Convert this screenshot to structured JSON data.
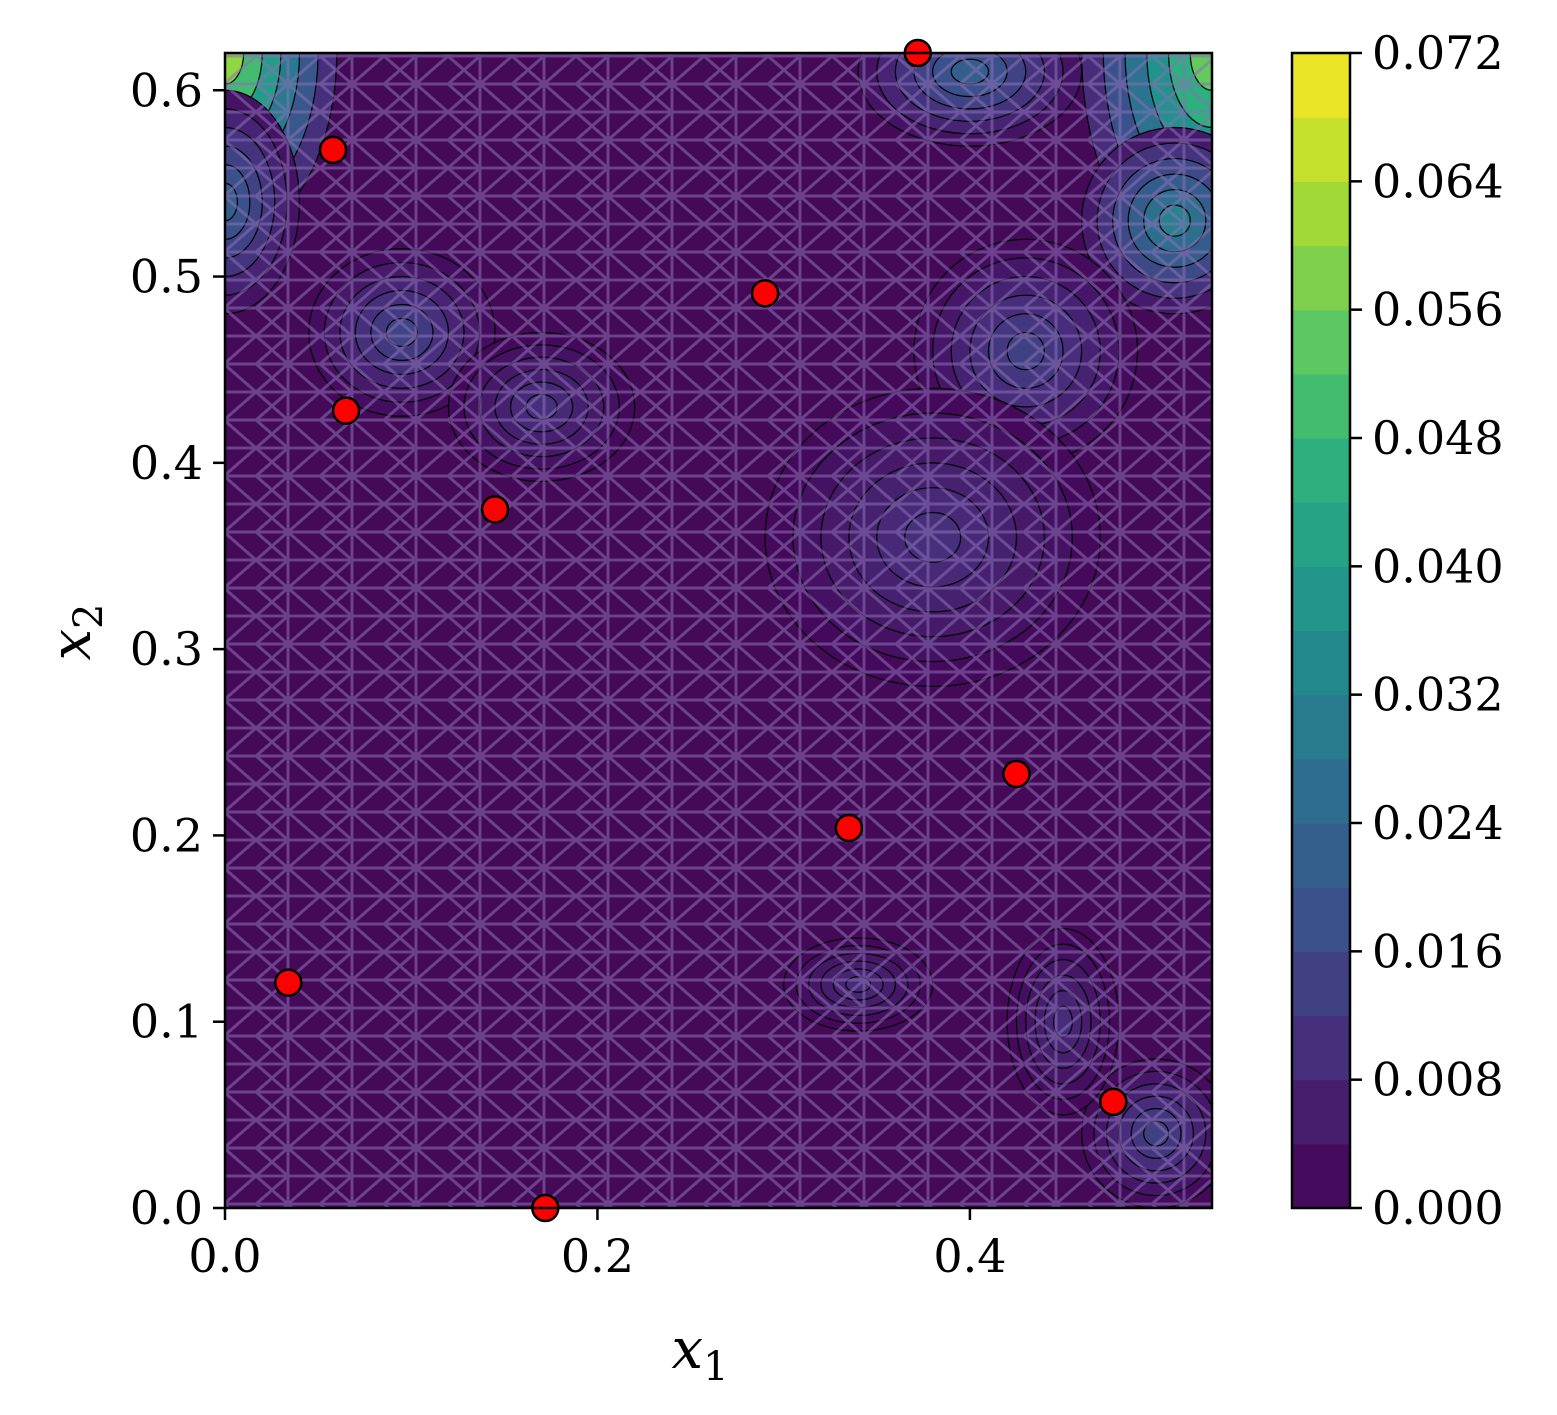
{
  "chart_data": {
    "type": "heatmap",
    "title": "",
    "xlabel": "x",
    "xlabel_sub": "1",
    "ylabel": "x",
    "ylabel_sub": "2",
    "xlim": [
      0.0,
      0.53
    ],
    "ylim": [
      0.0,
      0.62
    ],
    "x_ticks": [
      "0.0",
      "0.2",
      "0.4"
    ],
    "x_tick_values": [
      0.0,
      0.2,
      0.4
    ],
    "y_ticks": [
      "0.0",
      "0.1",
      "0.2",
      "0.3",
      "0.4",
      "0.5",
      "0.6"
    ],
    "y_tick_values": [
      0.0,
      0.1,
      0.2,
      0.3,
      0.4,
      0.5,
      0.6
    ],
    "colorbar": {
      "colormap": "viridis",
      "range": [
        0.0,
        0.072
      ],
      "tick_labels": [
        "0.000",
        "0.008",
        "0.016",
        "0.024",
        "0.032",
        "0.040",
        "0.048",
        "0.056",
        "0.064",
        "0.072"
      ],
      "tick_values": [
        0.0,
        0.008,
        0.016,
        0.024,
        0.032,
        0.04,
        0.048,
        0.056,
        0.064,
        0.072
      ],
      "levels": 18
    },
    "overlay": "triangular mesh",
    "points": {
      "color": "#ff0000",
      "edge_color": "#000000",
      "x": [
        0.058,
        0.065,
        0.145,
        0.29,
        0.372,
        0.335,
        0.425,
        0.034,
        0.477,
        0.172
      ],
      "y": [
        0.568,
        0.428,
        0.375,
        0.491,
        0.62,
        0.204,
        0.233,
        0.121,
        0.057,
        0.0
      ]
    },
    "hot_regions": [
      {
        "x": 0.0,
        "y": 0.62,
        "value": 0.06,
        "rx": 0.06,
        "ry": 0.1
      },
      {
        "x": 0.53,
        "y": 0.62,
        "value": 0.055,
        "rx": 0.07,
        "ry": 0.12
      },
      {
        "x": 0.51,
        "y": 0.53,
        "value": 0.032,
        "rx": 0.05,
        "ry": 0.05
      },
      {
        "x": 0.4,
        "y": 0.61,
        "value": 0.022,
        "rx": 0.06,
        "ry": 0.04
      },
      {
        "x": 0.0,
        "y": 0.54,
        "value": 0.022,
        "rx": 0.04,
        "ry": 0.06
      },
      {
        "x": 0.095,
        "y": 0.47,
        "value": 0.015,
        "rx": 0.05,
        "ry": 0.045
      },
      {
        "x": 0.43,
        "y": 0.46,
        "value": 0.014,
        "rx": 0.06,
        "ry": 0.06
      },
      {
        "x": 0.38,
        "y": 0.36,
        "value": 0.01,
        "rx": 0.09,
        "ry": 0.08
      },
      {
        "x": 0.5,
        "y": 0.04,
        "value": 0.014,
        "rx": 0.04,
        "ry": 0.04
      },
      {
        "x": 0.45,
        "y": 0.1,
        "value": 0.009,
        "rx": 0.03,
        "ry": 0.05
      },
      {
        "x": 0.34,
        "y": 0.12,
        "value": 0.009,
        "rx": 0.04,
        "ry": 0.025
      },
      {
        "x": 0.17,
        "y": 0.43,
        "value": 0.01,
        "rx": 0.05,
        "ry": 0.04
      }
    ]
  }
}
